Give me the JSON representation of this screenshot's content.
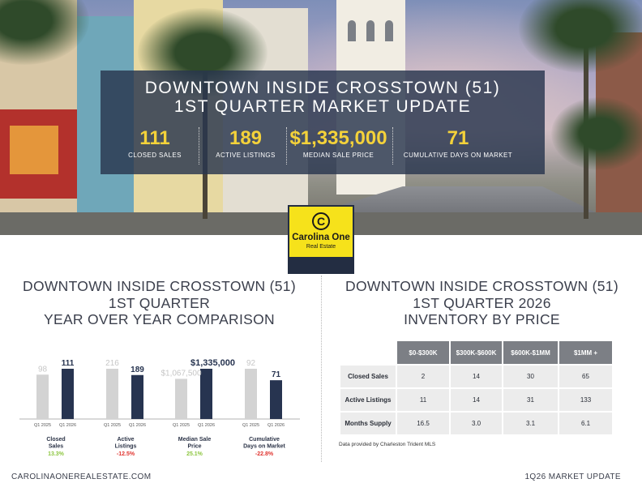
{
  "hero": {
    "title_line1": "DOWNTOWN INSIDE CROSSTOWN (51)",
    "title_line2": "1ST QUARTER MARKET UPDATE",
    "stats": [
      {
        "value": "111",
        "label": "CLOSED SALES"
      },
      {
        "value": "189",
        "label": "ACTIVE LISTINGS"
      },
      {
        "value": "$1,335,000",
        "label": "MEDIAN SALE PRICE"
      },
      {
        "value": "71",
        "label": "CUMULATIVE DAYS ON MARKET"
      }
    ]
  },
  "logo": {
    "mark": "C",
    "name": "Carolina One",
    "sub": "Real Estate"
  },
  "left_section": {
    "title_line1": "DOWNTOWN INSIDE CROSSTOWN (51)",
    "title_line2": "1ST QUARTER",
    "title_line3": "YEAR OVER YEAR COMPARISON"
  },
  "right_section": {
    "title_line1": "DOWNTOWN INSIDE CROSSTOWN (51)",
    "title_line2": "1ST QUARTER 2026",
    "title_line3": "INVENTORY BY PRICE"
  },
  "colors": {
    "prev_bar": "#d3d3d3",
    "cur_bar": "#273450",
    "positive": "#8cc63f",
    "negative": "#e0332e",
    "value_yellow": "#f4d23a"
  },
  "chart_data": [
    {
      "type": "bar",
      "title": "YEAR OVER YEAR COMPARISON",
      "tick_labels": [
        "Q1 2025",
        "Q1 2026"
      ],
      "groups": [
        {
          "category": "Closed\nSales",
          "prev": 98,
          "cur": 111,
          "prev_label": "98",
          "cur_label": "111",
          "change": "13.3%",
          "change_sign": "positive"
        },
        {
          "category": "Active\nListings",
          "prev": 216,
          "cur": 189,
          "prev_label": "216",
          "cur_label": "189",
          "change": "-12.5%",
          "change_sign": "negative"
        },
        {
          "category": "Median Sale\nPrice",
          "prev": 1067500,
          "cur": 1335000,
          "prev_label": "$1,067,500",
          "cur_label": "$1,335,000",
          "change": "25.1%",
          "change_sign": "positive"
        },
        {
          "category": "Cumulative\nDays on Market",
          "prev": 92,
          "cur": 71,
          "prev_label": "92",
          "cur_label": "71",
          "change": "-22.8%",
          "change_sign": "negative"
        }
      ]
    },
    {
      "type": "table",
      "title": "INVENTORY BY PRICE",
      "columns": [
        "$0-$300K",
        "$300K-$600K",
        "$600K-$1MM",
        "$1MM +"
      ],
      "rows": [
        {
          "label": "Closed Sales",
          "values": [
            "2",
            "14",
            "30",
            "65"
          ]
        },
        {
          "label": "Active Listings",
          "values": [
            "11",
            "14",
            "31",
            "133"
          ]
        },
        {
          "label": "Months Supply",
          "values": [
            "16.5",
            "3.0",
            "3.1",
            "6.1"
          ]
        }
      ]
    }
  ],
  "table_source": "Data provided by Charleston Trident MLS",
  "footer": {
    "left": "CAROLINAONEREALESTATE.COM",
    "right": "1Q26 MARKET UPDATE"
  }
}
